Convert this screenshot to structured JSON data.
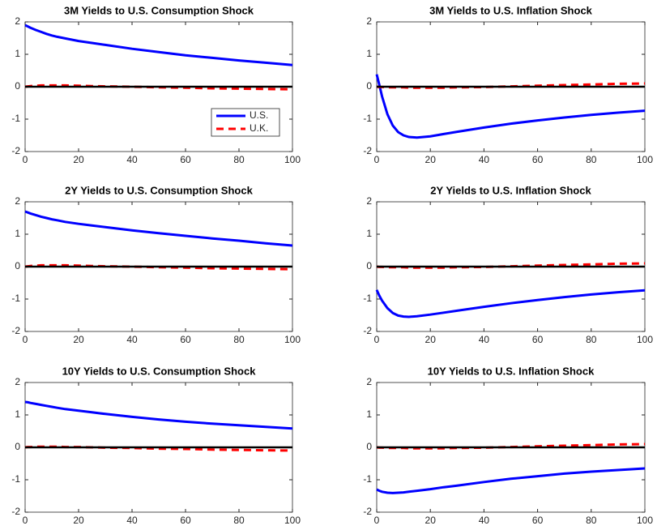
{
  "chart_data": [
    {
      "type": "line",
      "title": "3M Yields to U.S. Consumption Shock",
      "x": [
        0,
        1,
        2,
        4,
        6,
        8,
        10,
        12,
        15,
        20,
        25,
        30,
        40,
        50,
        60,
        70,
        80,
        90,
        100
      ],
      "xlim": [
        0,
        100
      ],
      "ylim": [
        -2,
        2
      ],
      "xticks": [
        0,
        20,
        40,
        60,
        80,
        100
      ],
      "yticks": [
        -2,
        -1,
        0,
        1,
        2
      ],
      "zero_line": true,
      "legend": "lower right",
      "series": [
        {
          "name": "U.S.",
          "color": "#0000ff",
          "style": "solid",
          "values": [
            1.9,
            1.86,
            1.82,
            1.75,
            1.69,
            1.63,
            1.58,
            1.54,
            1.49,
            1.41,
            1.35,
            1.29,
            1.17,
            1.07,
            0.97,
            0.89,
            0.81,
            0.74,
            0.67
          ]
        },
        {
          "name": "U.K.",
          "color": "#ff0000",
          "style": "dashed",
          "values": [
            0,
            0.01,
            0.02,
            0.03,
            0.04,
            0.04,
            0.04,
            0.04,
            0.04,
            0.03,
            0.02,
            0.01,
            0,
            -0.02,
            -0.03,
            -0.05,
            -0.06,
            -0.07,
            -0.08
          ]
        }
      ]
    },
    {
      "type": "line",
      "title": "3M Yields to U.S. Inflation Shock",
      "x": [
        0,
        1,
        2,
        4,
        6,
        8,
        10,
        12,
        15,
        20,
        25,
        30,
        40,
        50,
        60,
        70,
        80,
        90,
        100
      ],
      "xlim": [
        0,
        100
      ],
      "ylim": [
        -2,
        2
      ],
      "xticks": [
        0,
        20,
        40,
        60,
        80,
        100
      ],
      "yticks": [
        -2,
        -1,
        0,
        1,
        2
      ],
      "zero_line": true,
      "series": [
        {
          "name": "U.S.",
          "color": "#0000ff",
          "style": "solid",
          "values": [
            0.38,
            0.05,
            -0.3,
            -0.85,
            -1.2,
            -1.4,
            -1.5,
            -1.55,
            -1.57,
            -1.53,
            -1.46,
            -1.39,
            -1.26,
            -1.14,
            -1.04,
            -0.95,
            -0.87,
            -0.8,
            -0.74
          ]
        },
        {
          "name": "U.K.",
          "color": "#ff0000",
          "style": "dashed",
          "values": [
            0,
            -0.01,
            -0.01,
            -0.02,
            -0.02,
            -0.02,
            -0.02,
            -0.03,
            -0.03,
            -0.03,
            -0.03,
            -0.02,
            -0.01,
            0.01,
            0.03,
            0.05,
            0.07,
            0.09,
            0.1
          ]
        }
      ]
    },
    {
      "type": "line",
      "title": "2Y Yields to U.S. Consumption Shock",
      "x": [
        0,
        1,
        2,
        4,
        6,
        8,
        10,
        12,
        15,
        20,
        25,
        30,
        40,
        50,
        60,
        70,
        80,
        90,
        100
      ],
      "xlim": [
        0,
        100
      ],
      "ylim": [
        -2,
        2
      ],
      "xticks": [
        0,
        20,
        40,
        60,
        80,
        100
      ],
      "yticks": [
        -2,
        -1,
        0,
        1,
        2
      ],
      "zero_line": true,
      "series": [
        {
          "name": "U.S.",
          "color": "#0000ff",
          "style": "solid",
          "values": [
            1.7,
            1.67,
            1.64,
            1.59,
            1.54,
            1.5,
            1.46,
            1.43,
            1.38,
            1.32,
            1.27,
            1.22,
            1.12,
            1.03,
            0.95,
            0.87,
            0.8,
            0.72,
            0.65
          ]
        },
        {
          "name": "U.K.",
          "color": "#ff0000",
          "style": "dashed",
          "values": [
            0,
            0.01,
            0.02,
            0.03,
            0.04,
            0.04,
            0.04,
            0.04,
            0.04,
            0.03,
            0.02,
            0.01,
            0,
            -0.02,
            -0.03,
            -0.05,
            -0.06,
            -0.07,
            -0.08
          ]
        }
      ]
    },
    {
      "type": "line",
      "title": "2Y Yields to U.S. Inflation Shock",
      "x": [
        0,
        1,
        2,
        4,
        6,
        8,
        10,
        12,
        15,
        20,
        25,
        30,
        40,
        50,
        60,
        70,
        80,
        90,
        100
      ],
      "xlim": [
        0,
        100
      ],
      "ylim": [
        -2,
        2
      ],
      "xticks": [
        0,
        20,
        40,
        60,
        80,
        100
      ],
      "yticks": [
        -2,
        -1,
        0,
        1,
        2
      ],
      "zero_line": true,
      "series": [
        {
          "name": "U.S.",
          "color": "#0000ff",
          "style": "solid",
          "values": [
            -0.72,
            -0.9,
            -1.05,
            -1.28,
            -1.43,
            -1.51,
            -1.54,
            -1.55,
            -1.53,
            -1.48,
            -1.42,
            -1.36,
            -1.24,
            -1.13,
            -1.03,
            -0.94,
            -0.86,
            -0.79,
            -0.73
          ]
        },
        {
          "name": "U.K.",
          "color": "#ff0000",
          "style": "dashed",
          "values": [
            0,
            -0.01,
            -0.01,
            -0.02,
            -0.02,
            -0.02,
            -0.02,
            -0.03,
            -0.03,
            -0.03,
            -0.03,
            -0.02,
            -0.01,
            0.01,
            0.03,
            0.05,
            0.07,
            0.09,
            0.1
          ]
        }
      ]
    },
    {
      "type": "line",
      "title": "10Y Yields to U.S. Consumption Shock",
      "x": [
        0,
        1,
        2,
        4,
        6,
        8,
        10,
        12,
        15,
        20,
        25,
        30,
        40,
        50,
        60,
        70,
        80,
        90,
        100
      ],
      "xlim": [
        0,
        100
      ],
      "ylim": [
        -2,
        2
      ],
      "xticks": [
        0,
        20,
        40,
        60,
        80,
        100
      ],
      "yticks": [
        -2,
        -1,
        0,
        1,
        2
      ],
      "zero_line": true,
      "series": [
        {
          "name": "U.S.",
          "color": "#0000ff",
          "style": "solid",
          "values": [
            1.4,
            1.39,
            1.37,
            1.34,
            1.31,
            1.28,
            1.25,
            1.22,
            1.18,
            1.13,
            1.08,
            1.03,
            0.94,
            0.86,
            0.79,
            0.73,
            0.68,
            0.63,
            0.58
          ]
        },
        {
          "name": "U.K.",
          "color": "#ff0000",
          "style": "dashed",
          "values": [
            0,
            0.01,
            0.01,
            0.02,
            0.02,
            0.02,
            0.02,
            0.02,
            0.01,
            0.01,
            0,
            -0.01,
            -0.02,
            -0.04,
            -0.05,
            -0.07,
            -0.08,
            -0.09,
            -0.1
          ]
        }
      ]
    },
    {
      "type": "line",
      "title": "10Y Yields to U.S. Inflation Shock",
      "x": [
        0,
        1,
        2,
        4,
        6,
        8,
        10,
        12,
        15,
        20,
        25,
        30,
        40,
        50,
        60,
        70,
        80,
        90,
        100
      ],
      "xlim": [
        0,
        100
      ],
      "ylim": [
        -2,
        2
      ],
      "xticks": [
        0,
        20,
        40,
        60,
        80,
        100
      ],
      "yticks": [
        -2,
        -1,
        0,
        1,
        2
      ],
      "zero_line": true,
      "series": [
        {
          "name": "U.S.",
          "color": "#0000ff",
          "style": "solid",
          "values": [
            -1.3,
            -1.34,
            -1.37,
            -1.4,
            -1.41,
            -1.4,
            -1.39,
            -1.37,
            -1.34,
            -1.29,
            -1.23,
            -1.18,
            -1.07,
            -0.97,
            -0.89,
            -0.81,
            -0.75,
            -0.7,
            -0.65
          ]
        },
        {
          "name": "U.K.",
          "color": "#ff0000",
          "style": "dashed",
          "values": [
            0,
            -0.01,
            -0.01,
            -0.02,
            -0.02,
            -0.02,
            -0.02,
            -0.03,
            -0.03,
            -0.03,
            -0.03,
            -0.02,
            -0.01,
            0.01,
            0.03,
            0.05,
            0.07,
            0.09,
            0.1
          ]
        }
      ]
    }
  ]
}
